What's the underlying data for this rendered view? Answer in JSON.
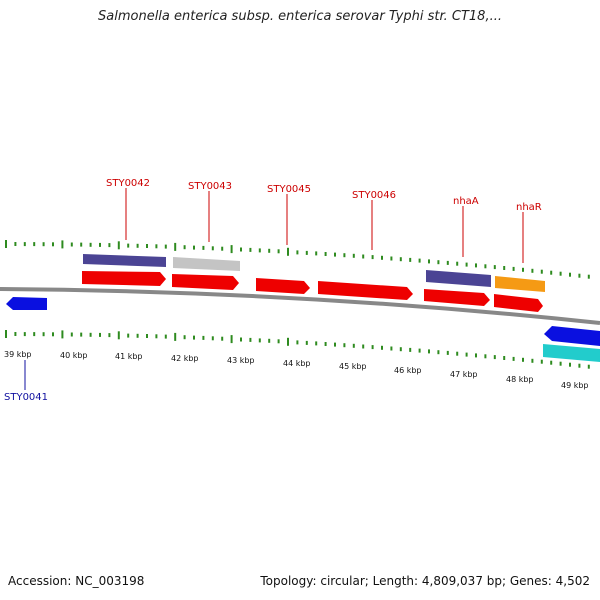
{
  "title": "Salmonella enterica subsp. enterica serovar Typhi str. CT18,...",
  "footer": {
    "accession": "Accession: NC_003198",
    "summary": "Topology: circular; Length: 4,809,037 bp; Genes: 4,502"
  },
  "colors": {
    "backbone": "#888888",
    "tick_outer": "#2e8b1f",
    "tick_inner": "#2e8b1f",
    "cds_forward": "#ee0000",
    "cds_reverse": "#0a10e0",
    "feature_purple": "#4b4494",
    "feature_gray": "#c4c4c4",
    "feature_orange": "#f59a14",
    "feature_cyan": "#22cccc",
    "label_forward": "#cc0000",
    "label_reverse": "#1010a0"
  },
  "scale_labels": [
    "39 kbp",
    "40 kbp",
    "41 kbp",
    "42 kbp",
    "43 kbp",
    "44 kbp",
    "45 kbp",
    "46 kbp",
    "47 kbp",
    "48 kbp",
    "49 kbp"
  ],
  "gene_labels": [
    {
      "name": "STY0041",
      "strand": "reverse"
    },
    {
      "name": "STY0042",
      "strand": "forward"
    },
    {
      "name": "STY0043",
      "strand": "forward"
    },
    {
      "name": "STY0045",
      "strand": "forward"
    },
    {
      "name": "STY0046",
      "strand": "forward"
    },
    {
      "name": "nhaA",
      "strand": "forward"
    },
    {
      "name": "nhaR",
      "strand": "forward"
    }
  ]
}
